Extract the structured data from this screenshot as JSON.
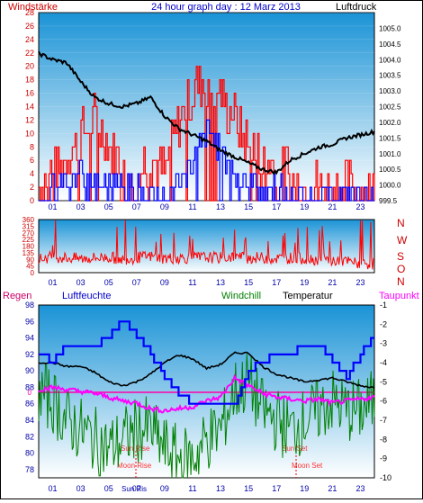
{
  "header": {
    "left_label": "Windstärke",
    "center_title": "24 hour graph day : 12 Marz 2013",
    "right_label": "Luftdruck"
  },
  "colors": {
    "wind_red": "#ff0000",
    "wind_blue": "#0000ff",
    "pressure_black": "#000000",
    "humidity_blue": "#0000ff",
    "windchill_green": "#008000",
    "dewpoint_magenta": "#ff00ff",
    "zero_line": "#ff00aa",
    "axis_red": "#cc0000",
    "axis_blue": "#0000aa",
    "plot_top": "#1a93d6",
    "plot_bottom": "#ffffff",
    "rain_label": "#cc0066"
  },
  "bottom_legend": {
    "regen": "Regen",
    "luftfeuchte": "Luftfeuchte",
    "windchill": "Windchill",
    "temperatur": "Temperatur",
    "taupunkt": "Taupunkt"
  },
  "direction_labels": [
    "N",
    "W",
    "S",
    "O",
    "N"
  ],
  "x_ticks": [
    "01",
    "03",
    "05",
    "07",
    "09",
    "11",
    "13",
    "15",
    "17",
    "19",
    "21",
    "23"
  ],
  "annotations": {
    "sun_rise": "Sun Rise",
    "moon_rise": "Moon Rise",
    "sun_set": "Sun Set",
    "moon_set": "Moon Set",
    "sun_ris_label": "Sun Ris"
  },
  "chart_data": [
    {
      "type": "line",
      "title": "24 hour graph day : 12 Marz 2013",
      "ylabel": "Windstärke",
      "y2label": "Luftdruck",
      "x": [
        0,
        1,
        2,
        3,
        4,
        5,
        6,
        7,
        8,
        9,
        10,
        11,
        12,
        13,
        14,
        15,
        16,
        17,
        18,
        19,
        20,
        21,
        22,
        23,
        24
      ],
      "ylim": [
        0,
        28
      ],
      "y_ticks": [
        0,
        2,
        4,
        6,
        8,
        10,
        12,
        14,
        16,
        18,
        20,
        22,
        24,
        26,
        28
      ],
      "y2lim": [
        999.5,
        1005.5
      ],
      "y2_ticks": [
        999.5,
        1000,
        1000.5,
        1001,
        1001.5,
        1002,
        1002.5,
        1003,
        1003.5,
        1004,
        1004.5,
        1005
      ],
      "series": [
        {
          "name": "Windstärke",
          "values": [
            2,
            4,
            6,
            10,
            12,
            8,
            6,
            5,
            6,
            4,
            12,
            16,
            18,
            16,
            12,
            8,
            5,
            6,
            4,
            2,
            2,
            2,
            2,
            2,
            2
          ]
        },
        {
          "name": "Wind",
          "values": [
            1,
            2,
            3,
            4,
            4,
            3,
            2,
            2,
            2,
            1,
            3,
            6,
            10,
            8,
            4,
            3,
            2,
            2,
            1,
            1,
            1,
            1,
            1,
            1,
            1
          ]
        },
        {
          "name": "Luftdruck",
          "values": [
            1004.2,
            1004.0,
            1003.9,
            1003.3,
            1002.8,
            1002.6,
            1002.5,
            1002.6,
            1002.8,
            1002.2,
            1001.8,
            1001.6,
            1001.4,
            1001.1,
            1000.9,
            1000.7,
            1000.5,
            1000.4,
            1000.8,
            1001.0,
            1001.2,
            1001.3,
            1001.5,
            1001.6,
            1001.7
          ]
        }
      ]
    },
    {
      "type": "line",
      "ylim": [
        0,
        360
      ],
      "y_ticks": [
        0,
        45,
        90,
        135,
        180,
        225,
        270,
        315,
        360
      ],
      "series": [
        {
          "name": "Windrichtung",
          "values": [
            90,
            110,
            100,
            95,
            100,
            105,
            90,
            100,
            110,
            95,
            100,
            100,
            105,
            100,
            110,
            100,
            100,
            95,
            100,
            95,
            90,
            80,
            75,
            60,
            60
          ]
        }
      ]
    },
    {
      "type": "line",
      "ylim": [
        77,
        98
      ],
      "y_ticks": [
        78,
        80,
        82,
        84,
        86,
        88,
        90,
        92,
        94,
        96,
        98
      ],
      "y2lim": [
        -10,
        -1
      ],
      "y2_ticks": [
        -1,
        -2,
        -3,
        -4,
        -5,
        -6,
        -7,
        -8,
        -9,
        -10
      ],
      "zero_label": "0",
      "series": [
        {
          "name": "Luftfeuchte",
          "values": [
            92,
            91,
            93,
            93,
            93,
            94,
            96,
            94,
            92,
            89,
            87,
            86,
            86,
            86,
            86,
            90,
            91,
            92,
            92,
            93,
            93,
            91,
            89,
            92,
            94
          ]
        },
        {
          "name": "Temperatur",
          "values": [
            -4.0,
            -4.0,
            -4.2,
            -4.2,
            -4.5,
            -5.0,
            -5.2,
            -5.0,
            -4.6,
            -4.0,
            -3.6,
            -3.8,
            -4.3,
            -4.1,
            -3.5,
            -3.5,
            -4.2,
            -4.6,
            -4.8,
            -5.0,
            -4.9,
            -4.8,
            -5.0,
            -5.2,
            -5.3
          ]
        },
        {
          "name": "Taupunkt",
          "values": [
            -5.4,
            -5.3,
            -5.4,
            -5.5,
            -5.6,
            -5.8,
            -6.0,
            -6.1,
            -6.4,
            -6.5,
            -6.4,
            -6.3,
            -6.0,
            -5.8,
            -4.8,
            -5.2,
            -5.6,
            -5.8,
            -5.9,
            -6.0,
            -5.9,
            -6.1,
            -6.0,
            -5.9,
            -5.8
          ]
        },
        {
          "name": "Windchill",
          "values": [
            -5.5,
            -6.0,
            -7.0,
            -7.5,
            -8.0,
            -8.5,
            -8.0,
            -7.5,
            -7.5,
            -8.5,
            -9.0,
            -9.0,
            -8.0,
            -7.5,
            -5.5,
            -5.0,
            -6.5,
            -7.0,
            -7.5,
            -7.0,
            -6.5,
            -6.0,
            -6.5,
            -6.5,
            -6.0
          ]
        }
      ]
    }
  ]
}
